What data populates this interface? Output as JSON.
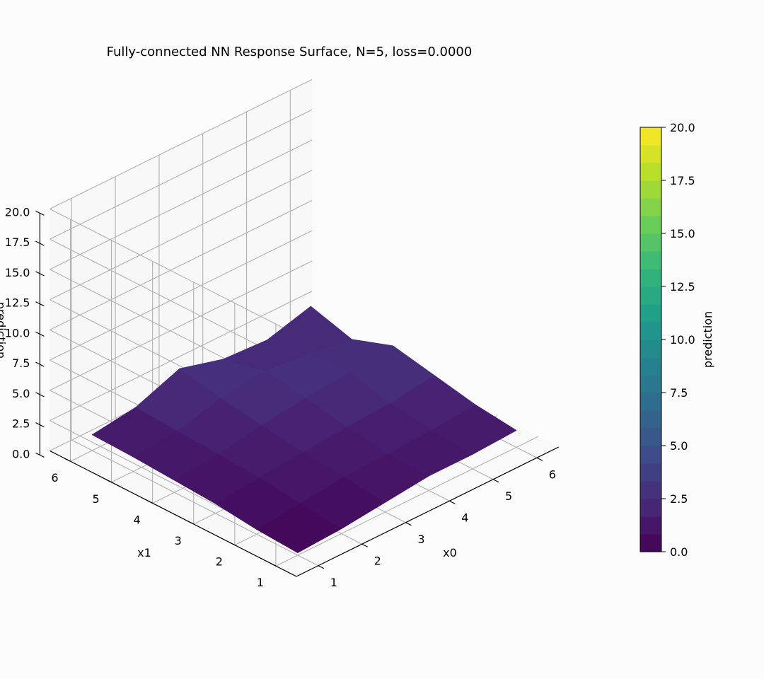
{
  "colors": {
    "background": "#fcfcfc",
    "pane_fill": "#f2f2f2",
    "grid": "#b0b0b0",
    "colormap": "viridis"
  },
  "chart_data": {
    "type": "surface3d",
    "title": "Fully-connected NN Response Surface, N=5, loss=0.0000",
    "xlabel": "x0",
    "ylabel": "x1",
    "zlabel": "prediction",
    "xlim": [
      0.5,
      6.5
    ],
    "ylim": [
      0.5,
      6.5
    ],
    "zlim": [
      0,
      20
    ],
    "xticks": [
      "1",
      "2",
      "3",
      "4",
      "5",
      "6"
    ],
    "yticks": [
      "1",
      "2",
      "3",
      "4",
      "5",
      "6"
    ],
    "zticks": [
      "0.0",
      "2.5",
      "5.0",
      "7.5",
      "10.0",
      "12.5",
      "15.0",
      "17.5",
      "20.0"
    ],
    "grid": true,
    "x": [
      1,
      2,
      3,
      4,
      5,
      6
    ],
    "y": [
      1,
      2,
      3,
      4,
      5,
      6
    ],
    "z": [
      [
        0.2,
        0.4,
        0.8,
        1.2,
        1.2,
        1.4
      ],
      [
        0.4,
        0.8,
        1.2,
        1.3,
        1.5,
        1.8
      ],
      [
        0.8,
        1.2,
        1.5,
        1.8,
        2.0,
        2.5
      ],
      [
        1.0,
        1.4,
        2.0,
        2.5,
        2.8,
        3.2
      ],
      [
        1.2,
        1.6,
        2.5,
        3.0,
        2.6,
        2.0
      ],
      [
        1.3,
        1.8,
        3.2,
        2.2,
        2.0,
        3.0
      ]
    ],
    "colorbar": {
      "label": "prediction",
      "ticks": [
        "0.0",
        "2.5",
        "5.0",
        "7.5",
        "10.0",
        "12.5",
        "15.0",
        "17.5",
        "20.0"
      ],
      "range": [
        0,
        20
      ],
      "levels": 24
    }
  }
}
